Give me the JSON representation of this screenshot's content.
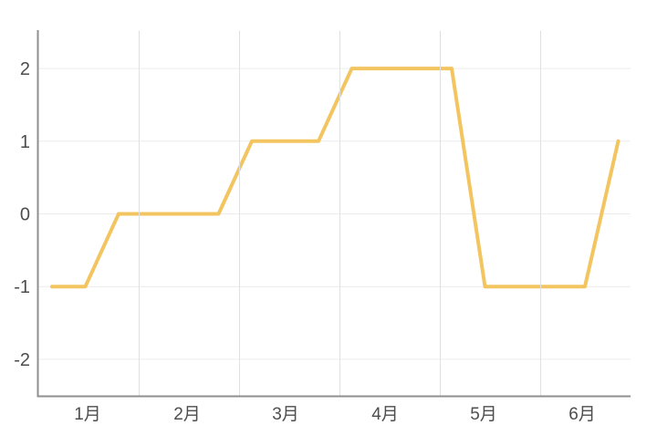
{
  "chart_data": {
    "type": "line",
    "title": "",
    "x_axis": {
      "tick_labels": [
        "1月",
        "2月",
        "3月",
        "4月",
        "5月",
        "6月"
      ],
      "points_per_category": 3
    },
    "y_axis": {
      "tick_labels": [
        "2",
        "1",
        "0",
        "-1",
        "-2"
      ],
      "tick_values": [
        2,
        1,
        0,
        -1,
        -2
      ],
      "range": [
        -2.5,
        2.5
      ]
    },
    "series": [
      {
        "values": [
          -1,
          -1,
          0,
          0,
          0,
          0,
          1,
          1,
          1,
          2,
          2,
          2,
          2,
          -1,
          -1,
          -1,
          -1,
          1
        ]
      }
    ],
    "grid": true,
    "legend": false,
    "layout_hints": {
      "gridlines_vertical_over_line": true,
      "line_has_round_caps": true
    }
  },
  "colors": {
    "background": "#FFFFFF",
    "line": "#F3C560",
    "h_grid": "#ECECEC",
    "v_grid": "#E0E0E0",
    "axis": "#8F8F8F",
    "tick_text": "#4D4D4D"
  }
}
